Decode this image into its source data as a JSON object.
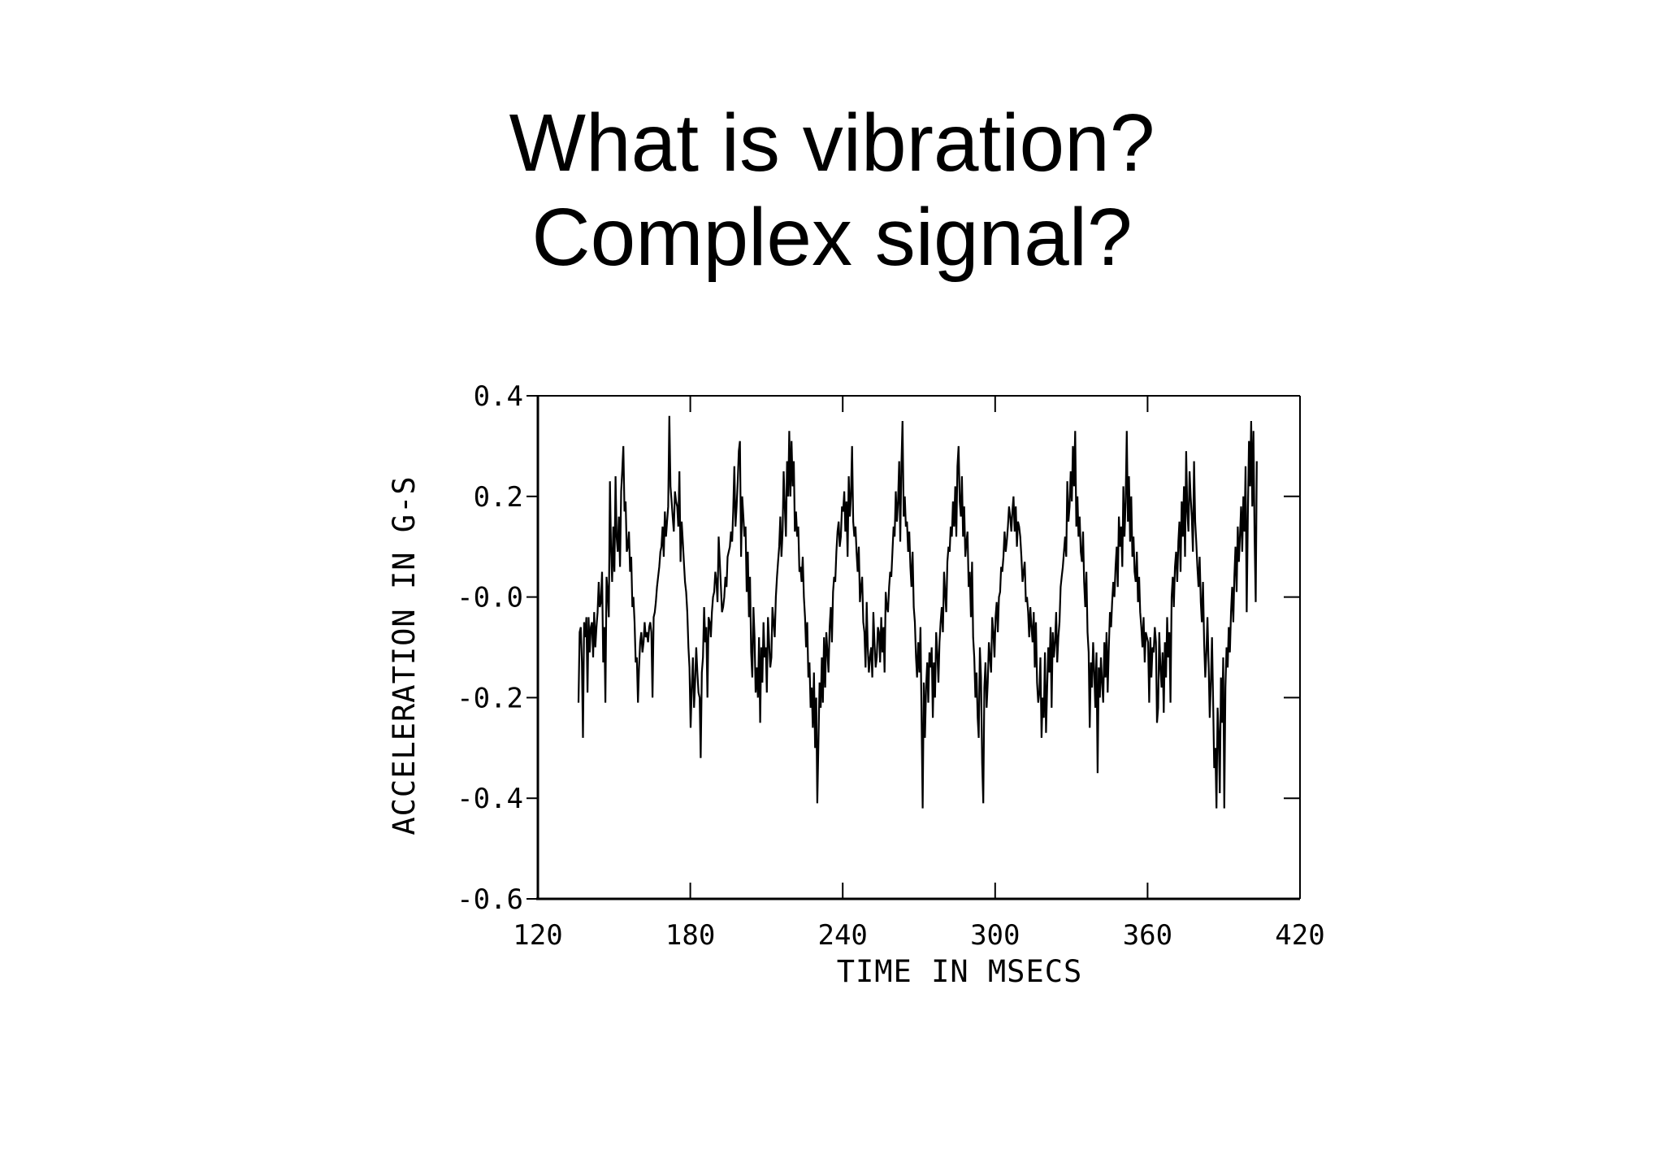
{
  "slide": {
    "title_line1": "What is vibration?",
    "title_line2": "Complex signal?"
  },
  "chart_data": {
    "type": "line",
    "title": "",
    "xlabel": "TIME IN MSECS",
    "ylabel": "ACCELERATION IN G-S",
    "xlim": [
      120,
      420
    ],
    "ylim": [
      -0.6,
      0.4
    ],
    "x_ticks": [
      120,
      180,
      240,
      300,
      360,
      420
    ],
    "x_tick_labels": [
      "120",
      "180",
      "240",
      "300",
      "360",
      "420"
    ],
    "y_ticks": [
      0.4,
      0.2,
      0.0,
      -0.2,
      -0.4,
      -0.6
    ],
    "y_tick_labels": [
      "0.4",
      "0.2",
      "-0.0",
      "-0.2",
      "-0.4",
      "-0.6"
    ],
    "grid": false,
    "line_color": "#000000",
    "x_range": [
      136,
      403
    ],
    "series": [
      {
        "values": [
          -0.21,
          -0.07,
          -0.06,
          -0.13,
          -0.28,
          -0.05,
          -0.08,
          -0.04,
          -0.19,
          -0.04,
          -0.11,
          -0.06,
          -0.05,
          -0.12,
          -0.03,
          -0.1,
          -0.06,
          -0.03,
          0.03,
          -0.02,
          -0.01,
          0.05,
          -0.13,
          -0.06,
          -0.21,
          0.04,
          0.01,
          -0.04,
          0.23,
          0.1,
          0.03,
          0.14,
          0.05,
          0.24,
          0.12,
          0.09,
          0.16,
          0.06,
          0.21,
          0.25,
          0.3,
          0.17,
          0.19,
          0.09,
          0.1,
          0.13,
          0.05,
          0.08,
          -0.02,
          0.0,
          -0.05,
          -0.13,
          -0.12,
          -0.21,
          -0.14,
          -0.09,
          -0.07,
          -0.11,
          -0.09,
          -0.05,
          -0.08,
          -0.07,
          -0.09,
          -0.06,
          -0.05,
          -0.07,
          -0.2,
          -0.04,
          -0.03,
          -0.01,
          0.02,
          0.04,
          0.06,
          0.09,
          0.1,
          0.14,
          0.08,
          0.17,
          0.12,
          0.15,
          0.18,
          0.36,
          0.22,
          0.19,
          0.16,
          0.13,
          0.21,
          0.19,
          0.18,
          0.14,
          0.25,
          0.07,
          0.15,
          0.11,
          0.07,
          0.03,
          0.01,
          -0.03,
          -0.1,
          -0.14,
          -0.26,
          -0.18,
          -0.12,
          -0.22,
          -0.17,
          -0.1,
          -0.15,
          -0.19,
          -0.2,
          -0.32,
          -0.15,
          -0.12,
          -0.02,
          -0.09,
          -0.06,
          -0.2,
          -0.04,
          -0.05,
          -0.08,
          -0.03,
          0.0,
          0.01,
          0.05,
          0.03,
          -0.01,
          0.12,
          0.07,
          0.02,
          -0.03,
          -0.02,
          0.0,
          0.04,
          0.02,
          0.08,
          0.09,
          0.1,
          0.13,
          0.11,
          0.17,
          0.26,
          0.14,
          0.18,
          0.23,
          0.29,
          0.31,
          0.08,
          0.2,
          0.16,
          0.12,
          0.14,
          0.01,
          0.09,
          -0.04,
          0.04,
          -0.11,
          -0.16,
          -0.02,
          -0.08,
          -0.19,
          -0.14,
          -0.2,
          -0.08,
          -0.25,
          -0.1,
          -0.17,
          -0.05,
          -0.12,
          -0.1,
          -0.19,
          -0.04,
          -0.09,
          -0.14,
          -0.12,
          -0.02,
          -0.05,
          -0.08,
          0.0,
          0.04,
          0.07,
          0.1,
          0.16,
          0.08,
          0.13,
          0.25,
          0.18,
          0.12,
          0.27,
          0.2,
          0.33,
          0.2,
          0.31,
          0.22,
          0.27,
          0.13,
          0.17,
          0.12,
          0.14,
          0.05,
          0.06,
          0.03,
          0.08,
          0.0,
          -0.04,
          -0.1,
          -0.05,
          -0.16,
          -0.13,
          -0.22,
          -0.18,
          -0.26,
          -0.15,
          -0.3,
          -0.2,
          -0.41,
          -0.29,
          -0.17,
          -0.22,
          -0.12,
          -0.21,
          -0.08,
          -0.18,
          -0.07,
          -0.11,
          -0.15,
          -0.06,
          -0.02,
          -0.09,
          0.01,
          0.04,
          0.03,
          0.09,
          0.13,
          0.15,
          0.1,
          0.12,
          0.18,
          0.17,
          0.21,
          0.13,
          0.19,
          0.08,
          0.24,
          0.16,
          0.2,
          0.3,
          0.15,
          0.12,
          0.14,
          0.09,
          0.05,
          0.1,
          -0.01,
          0.02,
          0.04,
          -0.05,
          -0.07,
          -0.14,
          -0.01,
          -0.1,
          -0.15,
          -0.12,
          -0.1,
          -0.16,
          -0.03,
          -0.09,
          -0.14,
          -0.12,
          -0.06,
          -0.07,
          -0.13,
          -0.04,
          -0.11,
          -0.06,
          -0.15,
          0.01,
          -0.02,
          -0.03,
          0.02,
          0.05,
          0.04,
          0.09,
          0.14,
          0.12,
          0.21,
          0.15,
          0.19,
          0.27,
          0.11,
          0.26,
          0.35,
          0.16,
          0.2,
          0.14,
          0.15,
          0.09,
          0.13,
          0.06,
          0.02,
          0.09,
          -0.02,
          -0.05,
          -0.12,
          -0.16,
          -0.09,
          -0.15,
          -0.06,
          -0.25,
          -0.42,
          -0.17,
          -0.28,
          -0.18,
          -0.13,
          -0.21,
          -0.11,
          -0.14,
          -0.1,
          -0.24,
          -0.13,
          -0.2,
          -0.07,
          -0.11,
          -0.17,
          -0.09,
          -0.05,
          -0.02,
          -0.07,
          0.05,
          0.01,
          -0.03,
          0.07,
          0.1,
          0.09,
          0.14,
          0.12,
          0.19,
          0.14,
          0.22,
          0.12,
          0.26,
          0.3,
          0.19,
          0.16,
          0.24,
          0.12,
          0.18,
          0.08,
          0.11,
          0.13,
          0.02,
          0.05,
          -0.04,
          0.07,
          -0.08,
          -0.12,
          -0.2,
          -0.15,
          -0.24,
          -0.28,
          -0.1,
          -0.16,
          -0.33,
          -0.41,
          -0.18,
          -0.13,
          -0.22,
          -0.17,
          -0.09,
          -0.12,
          -0.15,
          -0.04,
          -0.07,
          -0.12,
          -0.04,
          -0.01,
          -0.07,
          0.0,
          0.01,
          0.06,
          0.05,
          0.08,
          0.13,
          0.09,
          0.11,
          0.14,
          0.18,
          0.16,
          0.13,
          0.17,
          0.2,
          0.13,
          0.18,
          0.1,
          0.15,
          0.14,
          0.12,
          0.08,
          0.03,
          0.05,
          0.07,
          -0.01,
          0.0,
          -0.03,
          -0.08,
          -0.02,
          -0.06,
          -0.09,
          -0.03,
          -0.14,
          -0.05,
          -0.17,
          -0.21,
          -0.19,
          -0.12,
          -0.28,
          -0.2,
          -0.24,
          -0.11,
          -0.27,
          -0.18,
          -0.1,
          -0.15,
          -0.06,
          -0.22,
          -0.07,
          -0.12,
          -0.09,
          -0.03,
          -0.13,
          -0.08,
          -0.05,
          0.02,
          0.04,
          0.06,
          0.09,
          0.12,
          0.08,
          0.23,
          0.15,
          0.18,
          0.25,
          0.19,
          0.3,
          0.22,
          0.33,
          0.14,
          0.2,
          0.12,
          0.16,
          0.09,
          0.07,
          0.13,
          0.03,
          -0.02,
          0.05,
          -0.07,
          -0.11,
          -0.26,
          -0.13,
          -0.18,
          -0.09,
          -0.15,
          -0.22,
          -0.11,
          -0.35,
          -0.14,
          -0.2,
          -0.12,
          -0.17,
          -0.21,
          -0.09,
          -0.16,
          -0.07,
          -0.19,
          -0.1,
          -0.03,
          -0.06,
          -0.01,
          0.03,
          0.0,
          0.06,
          0.1,
          0.02,
          0.16,
          0.1,
          0.14,
          0.06,
          0.22,
          0.12,
          0.19,
          0.33,
          0.15,
          0.24,
          0.11,
          0.2,
          0.08,
          0.12,
          0.05,
          0.03,
          0.09,
          -0.01,
          0.04,
          -0.03,
          -0.06,
          -0.1,
          -0.04,
          -0.13,
          -0.07,
          -0.08,
          -0.09,
          -0.21,
          -0.08,
          -0.16,
          -0.1,
          -0.11,
          -0.06,
          -0.09,
          -0.25,
          -0.22,
          -0.07,
          -0.14,
          -0.18,
          -0.11,
          -0.23,
          -0.09,
          -0.16,
          -0.04,
          -0.12,
          -0.07,
          -0.21,
          0.0,
          0.04,
          -0.02,
          0.06,
          0.09,
          0.03,
          0.11,
          0.15,
          0.05,
          0.19,
          0.12,
          0.22,
          0.08,
          0.29,
          0.17,
          0.13,
          0.25,
          0.2,
          0.16,
          0.09,
          0.27,
          0.15,
          0.11,
          0.06,
          0.02,
          0.08,
          -0.01,
          -0.05,
          0.03,
          -0.09,
          -0.16,
          -0.11,
          -0.04,
          -0.13,
          -0.24,
          -0.17,
          -0.08,
          -0.2,
          -0.34,
          -0.3,
          -0.42,
          -0.22,
          -0.27,
          -0.39,
          -0.16,
          -0.25,
          -0.12,
          -0.42,
          -0.18,
          -0.1,
          -0.14,
          -0.06,
          -0.11,
          -0.03,
          0.02,
          -0.05,
          0.04,
          0.1,
          0.01,
          0.14,
          0.07,
          0.12,
          0.18,
          0.09,
          0.2,
          0.13,
          0.26,
          -0.03,
          0.16,
          0.31,
          0.22,
          0.35,
          0.18,
          0.33,
          0.12,
          -0.01,
          0.27
        ]
      }
    ]
  }
}
